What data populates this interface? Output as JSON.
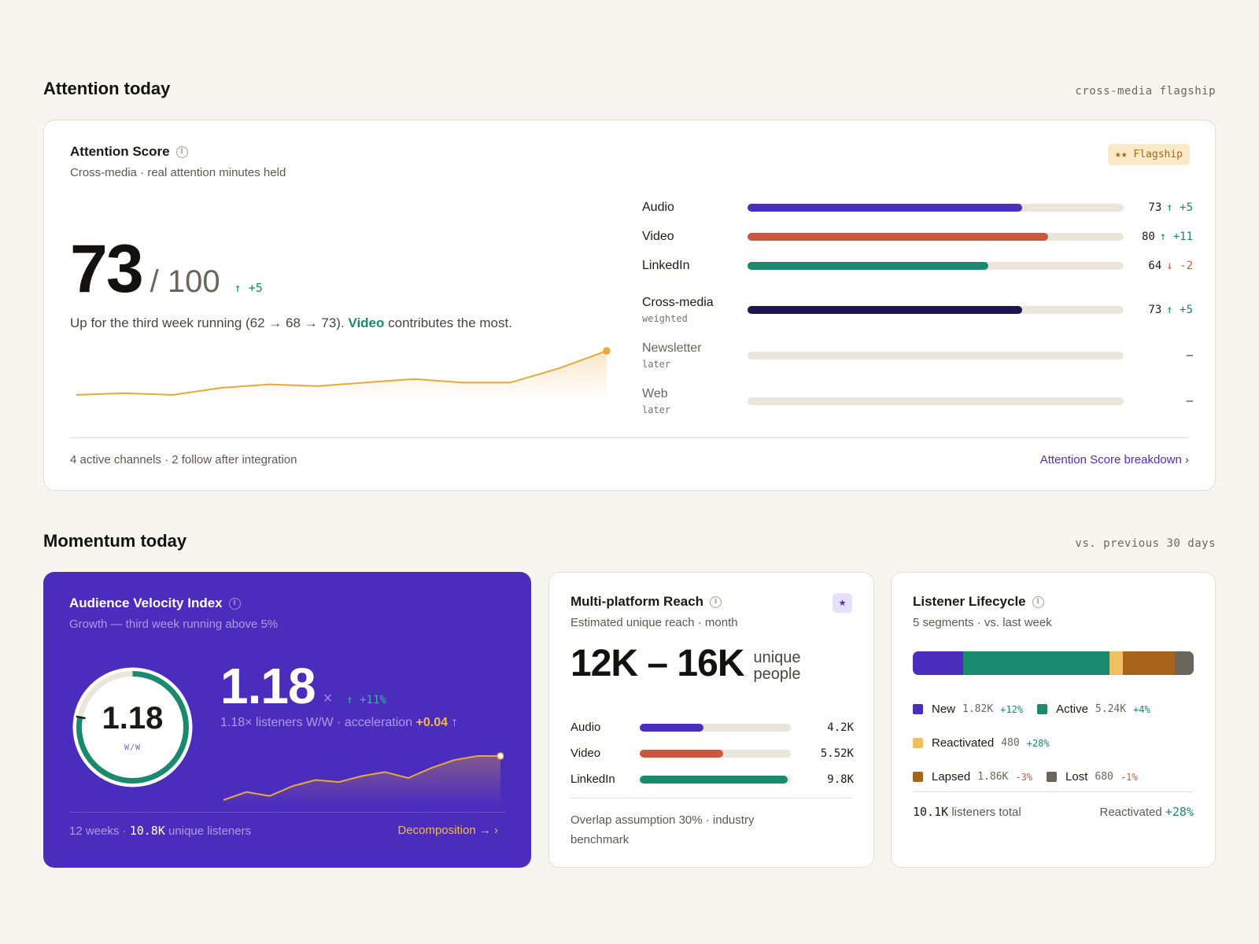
{
  "attention_section": {
    "title": "Attention today",
    "meta": "cross-media flagship"
  },
  "attention_card": {
    "title": "Attention Score",
    "subtitle": "Cross-media · real attention minutes held",
    "badge": "★★ Flagship",
    "score": "73",
    "score_max": "/ 100",
    "score_delta": "↑ +5",
    "desc_before": "Up for the third week running (62 → 68 → 73).",
    "desc_highlight": "Video",
    "desc_after": "contributes the most.",
    "trend": [
      45,
      46,
      45,
      49,
      51,
      50,
      52,
      54,
      52,
      52,
      60,
      70
    ],
    "channels": [
      {
        "name": "Audio",
        "note": "",
        "value": 73,
        "value_label": "73",
        "delta": "↑ +5",
        "dir": "up",
        "color": "#4b2dbd"
      },
      {
        "name": "Video",
        "note": "",
        "value": 80,
        "value_label": "80",
        "delta": "↑ +11",
        "dir": "up",
        "color": "#c9583f"
      },
      {
        "name": "LinkedIn",
        "note": "",
        "value": 64,
        "value_label": "64",
        "delta": "↓ -2",
        "dir": "down",
        "color": "#1a8a6e"
      },
      {
        "name": "Cross-media",
        "note": "weighted",
        "value": 73,
        "value_label": "73",
        "delta": "↑ +5",
        "dir": "up",
        "color": "#1c1550"
      },
      {
        "name": "Newsletter",
        "note": "later",
        "value": 0,
        "value_label": "–",
        "delta": "",
        "dir": "none",
        "color": "#ebe6da"
      },
      {
        "name": "Web",
        "note": "later",
        "value": 0,
        "value_label": "–",
        "delta": "",
        "dir": "none",
        "color": "#ebe6da"
      }
    ],
    "footer": "4 active channels · 2 follow after integration",
    "link": "Attention Score breakdown ›"
  },
  "momentum_section": {
    "title": "Momentum today",
    "meta": "vs. previous 30 days"
  },
  "velocity_card": {
    "title": "Audience Velocity Index",
    "subtitle": "Growth — third week running above 5%",
    "ring_value": "1.18",
    "ring_unit": "W/W",
    "ring_fraction": 0.78,
    "big_value": "1.18",
    "big_unit": "×",
    "delta": "↑ +11%",
    "desc_before": "1.18× listeners W/W · acceleration",
    "desc_accent": "+0.04 ↑",
    "trend": [
      22,
      30,
      26,
      36,
      42,
      40,
      46,
      50,
      44,
      54,
      62,
      66,
      66
    ],
    "footer_before": "12 weeks ·",
    "footer_strong": "10.8K",
    "footer_after": "unique listeners",
    "link": "Decomposition → ›",
    "accent_color": "#4b2dbd"
  },
  "reach_card": {
    "title": "Multi-platform Reach",
    "subtitle": "Estimated unique reach · month",
    "badge": "★",
    "range": "12K – 16K",
    "unit_line1": "unique",
    "unit_line2": "people",
    "rows": [
      {
        "name": "Audio",
        "value": 4.2,
        "label": "4.2K",
        "color": "#4b2dbd"
      },
      {
        "name": "Video",
        "value": 5.52,
        "label": "5.52K",
        "color": "#c9583f"
      },
      {
        "name": "LinkedIn",
        "value": 9.8,
        "label": "9.8K",
        "color": "#1a8a6e"
      }
    ],
    "note": "Overlap assumption 30% · industry benchmark"
  },
  "lifecycle_card": {
    "title": "Listener Lifecycle",
    "subtitle": "5 segments · vs. last week",
    "segments": [
      {
        "name": "New",
        "count": "1.82K",
        "value": 1820,
        "delta": "+12%",
        "dir": "up",
        "color": "#4b2dbd"
      },
      {
        "name": "Active",
        "count": "5.24K",
        "value": 5240,
        "delta": "+4%",
        "dir": "up",
        "color": "#1a8a6e"
      },
      {
        "name": "Reactivated",
        "count": "480",
        "value": 480,
        "delta": "+28%",
        "dir": "up",
        "color": "#f0c060"
      },
      {
        "name": "Lapsed",
        "count": "1.86K",
        "value": 1860,
        "delta": "-3%",
        "dir": "down",
        "color": "#a6651a"
      },
      {
        "name": "Lost",
        "count": "680",
        "value": 680,
        "delta": "-1%",
        "dir": "down",
        "color": "#6b665c"
      }
    ],
    "footer_strong": "10.1K",
    "footer_after": "listeners total",
    "footer_right_label": "Reactivated",
    "footer_right_value": "+28%"
  }
}
